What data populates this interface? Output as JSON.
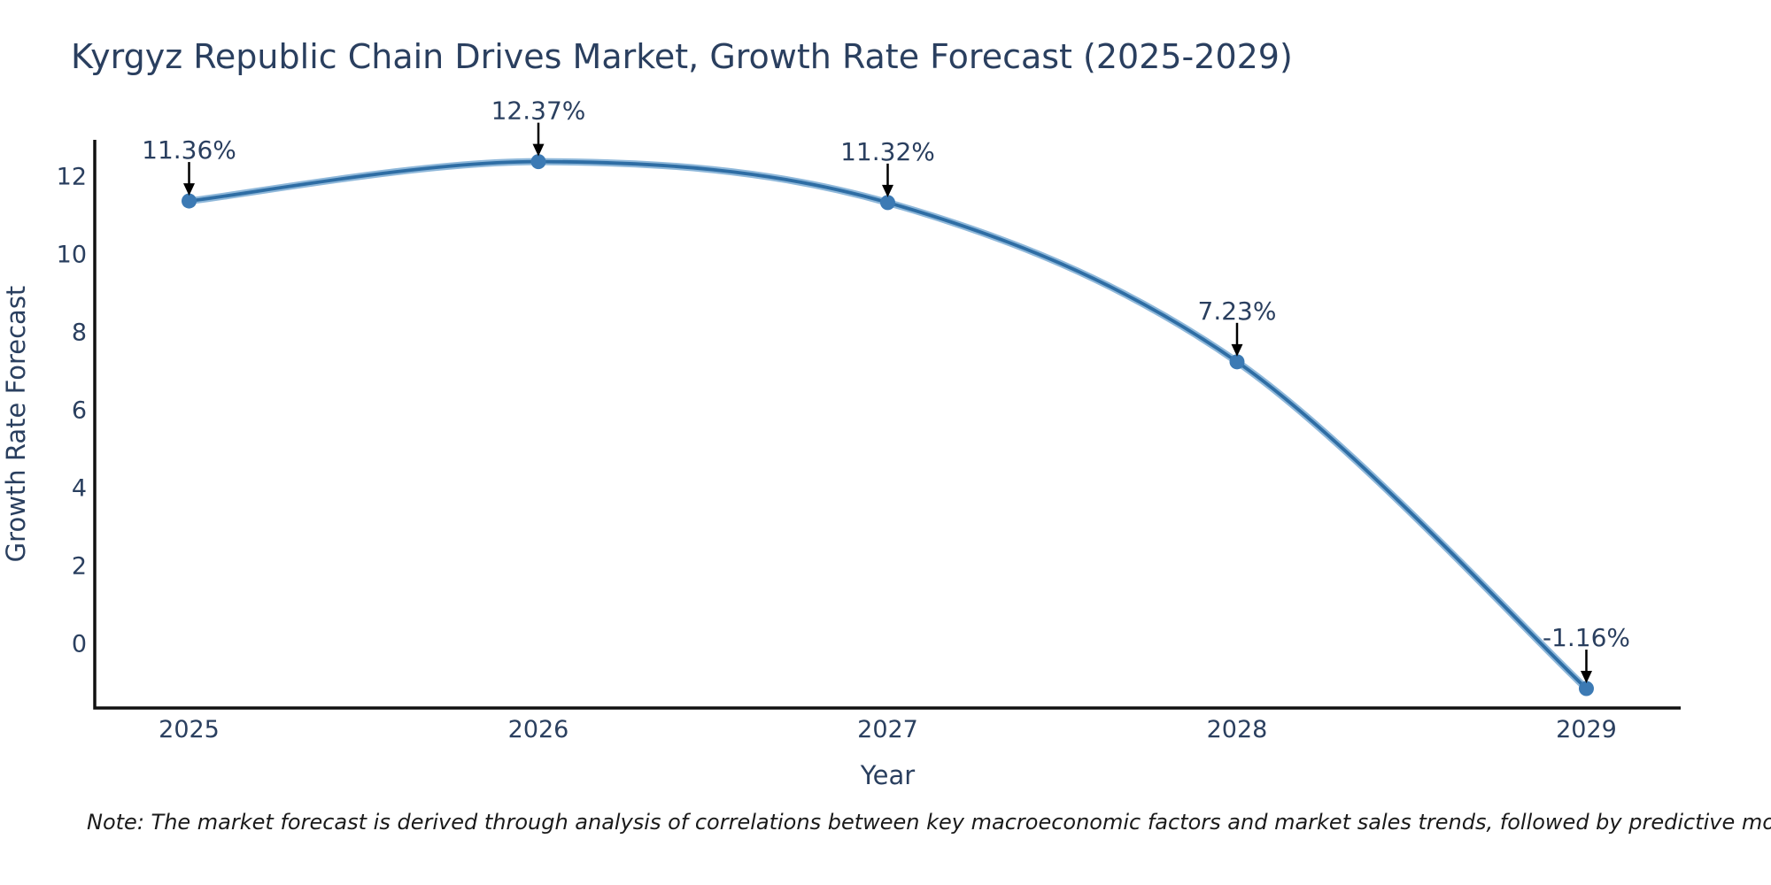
{
  "note": "Note: The market forecast is derived through analysis of correlations between key macroeconomic factors and market sales trends, followed by predictive modeling to project future sales",
  "chart_data": {
    "type": "line",
    "title": "Kyrgyz Republic Chain Drives Market, Growth Rate Forecast (2025-2029)",
    "xlabel": "Year",
    "ylabel": "Growth Rate Forecast",
    "x": [
      2025,
      2026,
      2027,
      2028,
      2029
    ],
    "categories": [
      "2025",
      "2026",
      "2027",
      "2028",
      "2029"
    ],
    "values": [
      11.36,
      12.37,
      11.32,
      7.23,
      -1.16
    ],
    "point_labels": [
      "11.36%",
      "12.37%",
      "11.32%",
      "7.23%",
      "-1.16%"
    ],
    "yticks": [
      12,
      10,
      8,
      6,
      4,
      2,
      0
    ],
    "xlim": [
      2024.73,
      2029.27
    ],
    "ylim": [
      -1.66,
      12.93
    ],
    "grid": false,
    "legend": "none",
    "line_shape": "spline",
    "colors": {
      "line": "#2e6da4",
      "line_halo": "#8fb8da",
      "marker": "#3c7ab4",
      "text": "#2a3f5f",
      "axis": "#111111",
      "arrow": "#000000"
    }
  }
}
